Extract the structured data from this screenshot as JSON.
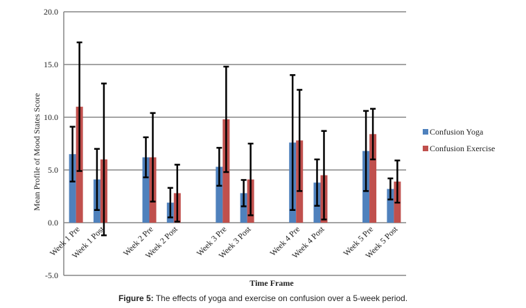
{
  "chart_data": {
    "type": "bar",
    "title": "",
    "xlabel": "Time Frame",
    "ylabel": "Mean Profile of Mood States Score",
    "ylim": [
      -5,
      20
    ],
    "yticks": [
      "-5.0",
      "0.0",
      "5.0",
      "10.0",
      "15.0",
      "20.0"
    ],
    "grid": true,
    "legend": "right",
    "categories": [
      "Week 1 Pre",
      "Week 1 Post",
      "",
      "Week 2 Pre",
      "Week 2 Post",
      "",
      "Week 3 Pre",
      "Week 3 Post",
      "",
      "Week 4 Pre",
      "Week 4 Post",
      "",
      "Week 5 Pre",
      "Week 5 Post"
    ],
    "series": [
      {
        "name": "Confusion Yoga",
        "color": "#4f81bd",
        "values": [
          6.5,
          4.1,
          null,
          6.2,
          1.9,
          null,
          5.3,
          2.8,
          null,
          7.6,
          3.8,
          null,
          6.8,
          3.2
        ],
        "error": [
          2.6,
          2.9,
          null,
          1.9,
          1.4,
          null,
          1.8,
          1.25,
          null,
          6.4,
          2.2,
          null,
          3.8,
          1.0
        ]
      },
      {
        "name": "Confusion Exercise",
        "color": "#c0504d",
        "values": [
          11.0,
          6.0,
          null,
          6.2,
          2.8,
          null,
          9.8,
          4.1,
          null,
          7.8,
          4.5,
          null,
          8.4,
          3.9
        ],
        "error": [
          6.1,
          7.2,
          null,
          4.2,
          2.7,
          null,
          5.0,
          3.4,
          null,
          4.8,
          4.2,
          null,
          2.4,
          2.0
        ]
      }
    ]
  },
  "caption": {
    "label": "Figure 5:",
    "text": " The effects of yoga and exercise on confusion over a 5-week period."
  }
}
